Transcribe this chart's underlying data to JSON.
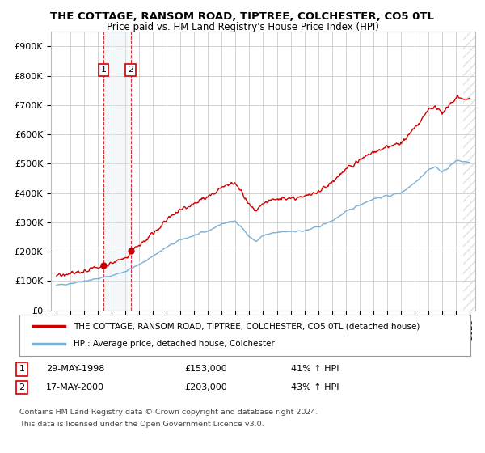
{
  "title": "THE COTTAGE, RANSOM ROAD, TIPTREE, COLCHESTER, CO5 0TL",
  "subtitle": "Price paid vs. HM Land Registry's House Price Index (HPI)",
  "ylabel_values": [
    "£0",
    "£100K",
    "£200K",
    "£300K",
    "£400K",
    "£500K",
    "£600K",
    "£700K",
    "£800K",
    "£900K"
  ],
  "yticks": [
    0,
    100000,
    200000,
    300000,
    400000,
    500000,
    600000,
    700000,
    800000,
    900000
  ],
  "ylim": [
    0,
    950000
  ],
  "xlim_start": 1994.6,
  "xlim_end": 2025.4,
  "line1_color": "#cc0000",
  "line2_color": "#7bafd4",
  "sale1_date": 1998.41,
  "sale1_price": 153000,
  "sale2_date": 2000.38,
  "sale2_price": 203000,
  "sale1_label": "1",
  "sale2_label": "2",
  "legend_line1": "THE COTTAGE, RANSOM ROAD, TIPTREE, COLCHESTER, CO5 0TL (detached house)",
  "legend_line2": "HPI: Average price, detached house, Colchester",
  "table_row1": [
    "1",
    "29-MAY-1998",
    "£153,000",
    "41% ↑ HPI"
  ],
  "table_row2": [
    "2",
    "17-MAY-2000",
    "£203,000",
    "43% ↑ HPI"
  ],
  "footnote1": "Contains HM Land Registry data © Crown copyright and database right 2024.",
  "footnote2": "This data is licensed under the Open Government Licence v3.0.",
  "background_color": "#ffffff",
  "grid_color": "#cccccc",
  "shade_color": "#dde8f5"
}
